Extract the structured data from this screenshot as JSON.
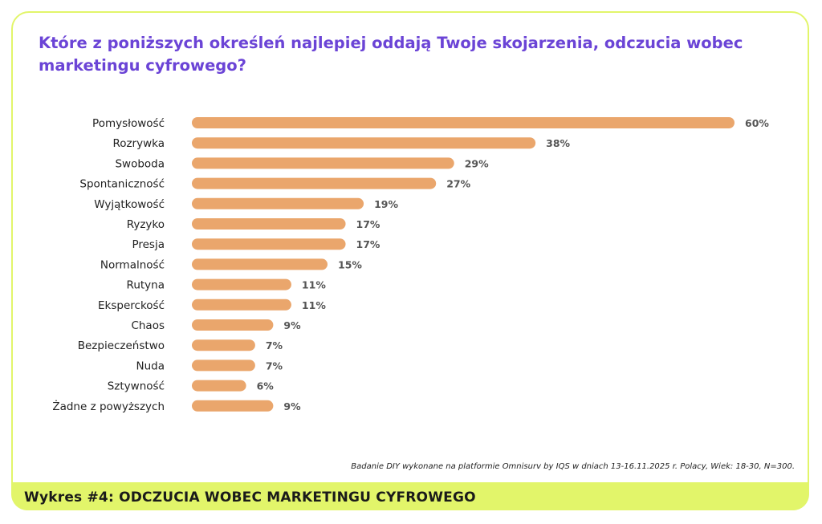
{
  "title": "Które z poniższych określeń najlepiej oddają Twoje skojarzenia, odczucia wobec marketingu cyfrowego?",
  "source": "Badanie DIY wykonane na platformie Omnisurv by IQS w dniach 13-16.11.2025 r.  Polacy, Wiek: 18-30, N=300.",
  "footer": "Wykres #4: ODCZUCIA WOBEC MARKETINGU CYFROWEGO",
  "colors": {
    "bar": "#eaa66c",
    "title": "#6b44d6",
    "accent": "#e2f56a"
  },
  "chart_data": {
    "type": "bar",
    "orientation": "horizontal",
    "categories": [
      "Pomysłowość",
      "Rozrywka",
      "Swoboda",
      "Spontaniczność",
      "Wyjątkowość",
      "Ryzyko",
      "Presja",
      "Normalność",
      "Rutyna",
      "Eksperckość",
      "Chaos",
      "Bezpieczeństwo",
      "Nuda",
      "Sztywność",
      "Żadne z powyższych"
    ],
    "values": [
      60,
      38,
      29,
      27,
      19,
      17,
      17,
      15,
      11,
      11,
      9,
      7,
      7,
      6,
      9
    ],
    "value_labels": [
      "60%",
      "38%",
      "29%",
      "27%",
      "19%",
      "17%",
      "17%",
      "15%",
      "11%",
      "11%",
      "9%",
      "7%",
      "7%",
      "6%",
      "9%"
    ],
    "unit": "%",
    "xlim": [
      0,
      60
    ],
    "grid": false,
    "legend": "none"
  }
}
